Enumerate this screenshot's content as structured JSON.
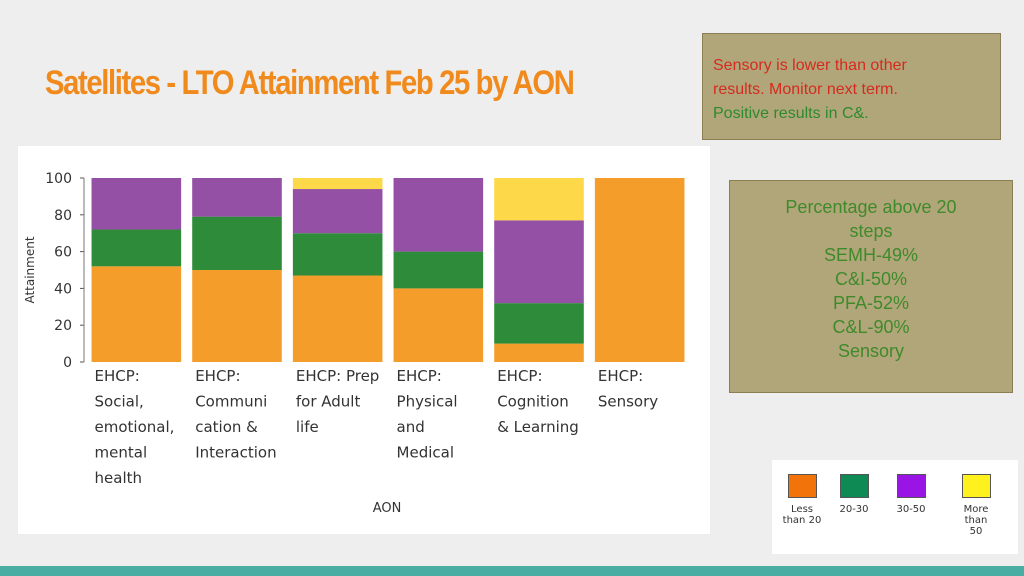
{
  "slide": {
    "title": "Satellites - LTO Attainment Feb 25 by AON",
    "title_color": "#f08a1c",
    "note1": {
      "line1": "Sensory is lower than other",
      "line2": "results. Monitor next term.",
      "line3": "Positive results in C&."
    },
    "note2": {
      "lines": [
        "Percentage above 20",
        "steps",
        "SEMH-49%",
        "C&I-50%",
        "PFA-52%",
        "C&L-90%",
        "Sensory"
      ]
    },
    "accent_bar_color": "#4aada3"
  },
  "legend": [
    {
      "label": "Less than 20",
      "lines": [
        "Less",
        "than 20"
      ],
      "color": "#f2730a"
    },
    {
      "label": "20-30",
      "lines": [
        "20-30"
      ],
      "color": "#0e8a55"
    },
    {
      "label": "30-50",
      "lines": [
        "30-50"
      ],
      "color": "#9a14e6"
    },
    {
      "label": "More than 50",
      "lines": [
        "More",
        "than",
        "50"
      ],
      "color": "#fff11e"
    }
  ],
  "chart_data": {
    "type": "bar",
    "stacked": true,
    "xlabel": "AON",
    "ylabel": "Attainment",
    "ylim": [
      0,
      100
    ],
    "yticks": [
      0,
      20,
      40,
      60,
      80,
      100
    ],
    "categories": [
      "EHCP: Social, emotional, mental health",
      "EHCP: Communication & Interaction",
      "EHCP: Prep for Adult life",
      "EHCP: Physical and Medical",
      "EHCP: Cognition & Learning",
      "EHCP: Sensory"
    ],
    "category_lines": [
      [
        "EHCP:",
        "Social,",
        "emotional,",
        "mental",
        "health"
      ],
      [
        "EHCP:",
        "Communi",
        "cation &",
        "Interaction"
      ],
      [
        "EHCP: Prep",
        "for Adult",
        "life"
      ],
      [
        "EHCP:",
        "Physical",
        "and",
        "Medical"
      ],
      [
        "EHCP:",
        "Cognition",
        "& Learning"
      ],
      [
        "EHCP:",
        "Sensory"
      ]
    ],
    "series": [
      {
        "name": "Less than 20",
        "color": "#f59d2a",
        "values": [
          52,
          50,
          47,
          40,
          10,
          100
        ]
      },
      {
        "name": "20-30",
        "color": "#2e8b3a",
        "values": [
          20,
          29,
          23,
          20,
          22,
          0
        ]
      },
      {
        "name": "30-50",
        "color": "#9350a4",
        "values": [
          28,
          21,
          24,
          40,
          45,
          0
        ]
      },
      {
        "name": "More than 50",
        "color": "#fdd94a",
        "values": [
          0,
          0,
          6,
          0,
          23,
          0
        ]
      }
    ]
  }
}
